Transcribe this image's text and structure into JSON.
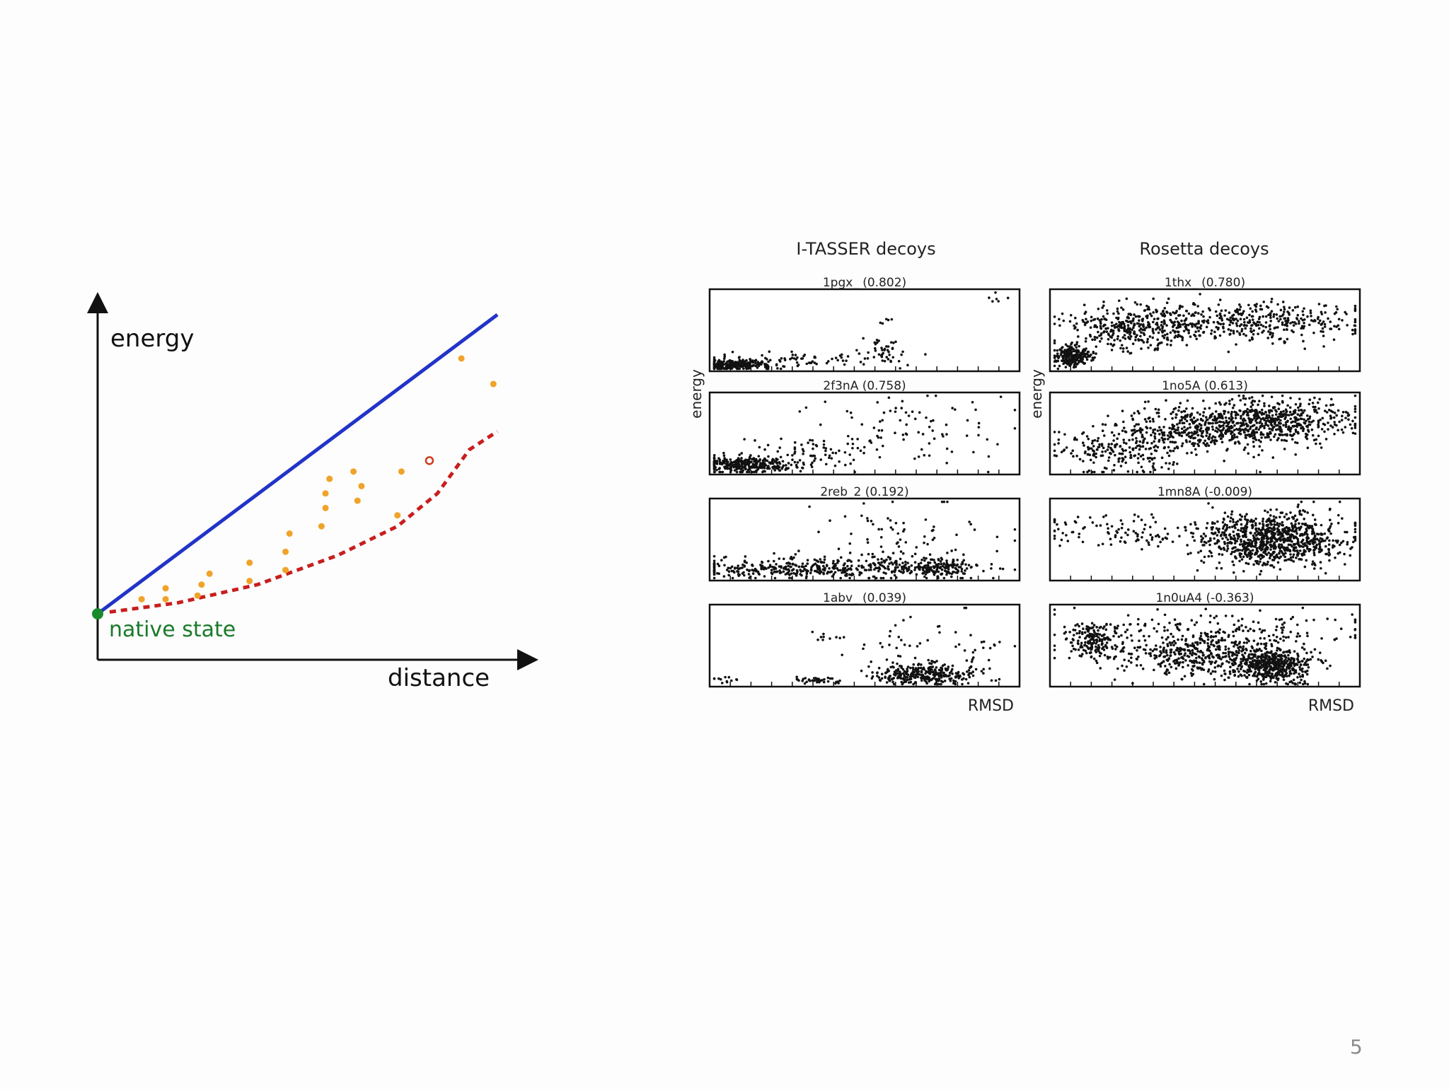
{
  "slide": {
    "page_number": "5"
  },
  "chart_data": [
    {
      "type": "scatter",
      "xlabel": "distance",
      "ylabel": "energy",
      "native_state_label": "native state",
      "native_state": [
        0,
        0
      ],
      "colors": {
        "upper_line": "#2233c8",
        "lower_curve": "#c81e1e",
        "points": "#f0a32a",
        "native": "#1a8a2a",
        "highlight": "#d23a1a"
      },
      "upper_line": [
        [
          0,
          0
        ],
        [
          100,
          82
        ]
      ],
      "lower_curve": [
        [
          3,
          0.5
        ],
        [
          20,
          3
        ],
        [
          40,
          8
        ],
        [
          60,
          16
        ],
        [
          75,
          24
        ],
        [
          85,
          33
        ],
        [
          93,
          45
        ],
        [
          100,
          50
        ]
      ],
      "points": [
        [
          11,
          4
        ],
        [
          17,
          4
        ],
        [
          17,
          7
        ],
        [
          25,
          5
        ],
        [
          26,
          8
        ],
        [
          28,
          11
        ],
        [
          38,
          9
        ],
        [
          38,
          14
        ],
        [
          47,
          12
        ],
        [
          47,
          17
        ],
        [
          48,
          22
        ],
        [
          56,
          24
        ],
        [
          57,
          29
        ],
        [
          57,
          33
        ],
        [
          58,
          37
        ],
        [
          65,
          31
        ],
        [
          66,
          35
        ],
        [
          64,
          39
        ],
        [
          75,
          27
        ],
        [
          76,
          39
        ],
        [
          91,
          70
        ],
        [
          99,
          63
        ]
      ],
      "highlight_point": [
        83,
        42
      ]
    },
    {
      "type": "scatter",
      "group": "I-TASSER decoys",
      "title": "1pgx_ (0.802)",
      "xlabel": "",
      "ylabel": "",
      "clusters": [
        {
          "cx": 8,
          "cy": 8,
          "sx": 6,
          "sy": 3,
          "n": 260
        },
        {
          "cx": 30,
          "cy": 14,
          "sx": 12,
          "sy": 5,
          "n": 60
        },
        {
          "cx": 57,
          "cy": 22,
          "sx": 4,
          "sy": 8,
          "n": 45
        },
        {
          "cx": 92,
          "cy": 88,
          "sx": 3,
          "sy": 5,
          "n": 6
        },
        {
          "cx": 56,
          "cy": 62,
          "sx": 2,
          "sy": 2,
          "n": 5
        }
      ]
    },
    {
      "type": "scatter",
      "group": "I-TASSER decoys",
      "title": "2f3nA (0.758)",
      "xlabel": "",
      "ylabel": "energy",
      "clusters": [
        {
          "cx": 12,
          "cy": 12,
          "sx": 8,
          "sy": 5,
          "n": 320
        },
        {
          "cx": 30,
          "cy": 26,
          "sx": 10,
          "sy": 10,
          "n": 70
        },
        {
          "cx": 65,
          "cy": 55,
          "sx": 16,
          "sy": 22,
          "n": 90
        }
      ]
    },
    {
      "type": "scatter",
      "group": "I-TASSER decoys",
      "title": "2reb_2 (0.192)",
      "xlabel": "",
      "ylabel": "",
      "clusters": [
        {
          "cx": 35,
          "cy": 15,
          "sx": 22,
          "sy": 6,
          "n": 420
        },
        {
          "cx": 62,
          "cy": 45,
          "sx": 16,
          "sy": 28,
          "n": 110
        },
        {
          "cx": 75,
          "cy": 15,
          "sx": 6,
          "sy": 5,
          "n": 120
        }
      ]
    },
    {
      "type": "scatter",
      "group": "I-TASSER decoys",
      "title": "1abv_ (0.039)",
      "xlabel": "RMSD",
      "ylabel": "",
      "clusters": [
        {
          "cx": 70,
          "cy": 15,
          "sx": 8,
          "sy": 6,
          "n": 320
        },
        {
          "cx": 68,
          "cy": 50,
          "sx": 12,
          "sy": 22,
          "n": 45
        },
        {
          "cx": 34,
          "cy": 8,
          "sx": 4,
          "sy": 2,
          "n": 35
        },
        {
          "cx": 6,
          "cy": 8,
          "sx": 2,
          "sy": 2,
          "n": 12
        },
        {
          "cx": 37,
          "cy": 60,
          "sx": 4,
          "sy": 3,
          "n": 8
        },
        {
          "cx": 90,
          "cy": 55,
          "sx": 4,
          "sy": 8,
          "n": 10
        }
      ]
    },
    {
      "type": "scatter",
      "group": "Rosetta decoys",
      "title": "1thx_ (0.780)",
      "xlabel": "",
      "ylabel": "",
      "clusters": [
        {
          "cx": 7,
          "cy": 18,
          "sx": 3,
          "sy": 6,
          "n": 220
        },
        {
          "cx": 25,
          "cy": 50,
          "sx": 10,
          "sy": 14,
          "n": 300
        },
        {
          "cx": 60,
          "cy": 60,
          "sx": 20,
          "sy": 12,
          "n": 450
        }
      ]
    },
    {
      "type": "scatter",
      "group": "Rosetta decoys",
      "title": "1no5A (0.613)",
      "xlabel": "",
      "ylabel": "energy",
      "clusters": [
        {
          "cx": 22,
          "cy": 30,
          "sx": 10,
          "sy": 14,
          "n": 200
        },
        {
          "cx": 45,
          "cy": 55,
          "sx": 13,
          "sy": 14,
          "n": 350
        },
        {
          "cx": 72,
          "cy": 65,
          "sx": 13,
          "sy": 13,
          "n": 550
        }
      ]
    },
    {
      "type": "scatter",
      "group": "Rosetta decoys",
      "title": "1mn8A (-0.009)",
      "xlabel": "",
      "ylabel": "",
      "clusters": [
        {
          "cx": 72,
          "cy": 50,
          "sx": 11,
          "sy": 16,
          "n": 900
        },
        {
          "cx": 25,
          "cy": 58,
          "sx": 14,
          "sy": 10,
          "n": 110
        }
      ]
    },
    {
      "type": "scatter",
      "group": "Rosetta decoys",
      "title": "1n0uA4 (-0.363)",
      "xlabel": "RMSD",
      "ylabel": "",
      "clusters": [
        {
          "cx": 14,
          "cy": 55,
          "sx": 4,
          "sy": 10,
          "n": 180
        },
        {
          "cx": 50,
          "cy": 40,
          "sx": 14,
          "sy": 13,
          "n": 450
        },
        {
          "cx": 72,
          "cy": 25,
          "sx": 6,
          "sy": 10,
          "n": 450
        },
        {
          "cx": 50,
          "cy": 70,
          "sx": 28,
          "sy": 12,
          "n": 160
        }
      ]
    }
  ],
  "right_panel": {
    "left_column_title": "I-TASSER decoys",
    "right_column_title": "Rosetta decoys"
  }
}
